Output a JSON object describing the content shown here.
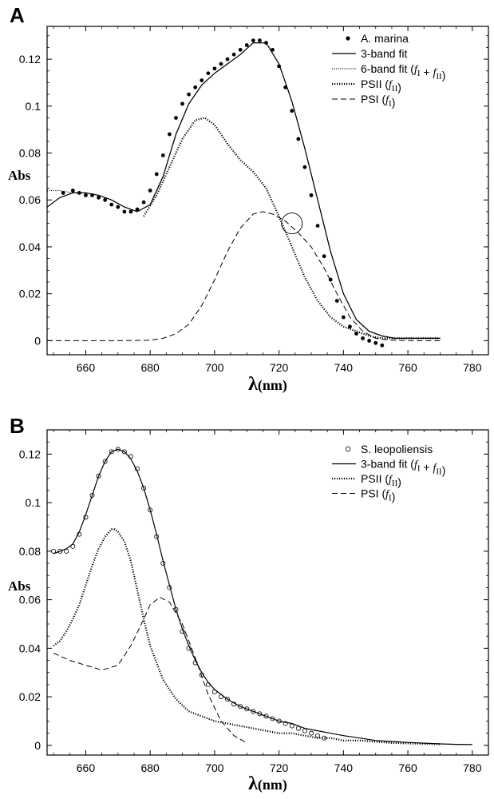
{
  "chart_data": [
    {
      "panel": "A",
      "type": "line",
      "xlabel": "λ(nm)",
      "ylabel": "Abs",
      "xlim": [
        648,
        785
      ],
      "ylim": [
        -0.006,
        0.134
      ],
      "xticks": [
        660,
        680,
        700,
        720,
        740,
        760,
        780
      ],
      "yticks": [
        0,
        0.02,
        0.04,
        0.06,
        0.08,
        0.1,
        0.12
      ],
      "ytick_labels": [
        "0",
        "0.02",
        "0.04",
        "0.06",
        "0.08",
        "0.1",
        "0.12"
      ],
      "legend_position": "top-right",
      "annotation": "open circle marking PSI curve crossing near 724 nm, 0.05",
      "annotation_point": [
        724,
        0.05
      ],
      "series": [
        {
          "name": "A. marina",
          "style": "points",
          "x": [
            653,
            656,
            658,
            660,
            662,
            664,
            666,
            668,
            670,
            672,
            674,
            676,
            678,
            680,
            682,
            684,
            686,
            688,
            690,
            692,
            694,
            696,
            698,
            700,
            702,
            704,
            706,
            708,
            710,
            712,
            714,
            716,
            718,
            720,
            722,
            724,
            726,
            728,
            730,
            732,
            734,
            736,
            738,
            740,
            742,
            744,
            746,
            748,
            750,
            752
          ],
          "y": [
            0.063,
            0.064,
            0.063,
            0.062,
            0.062,
            0.061,
            0.06,
            0.058,
            0.057,
            0.055,
            0.055,
            0.056,
            0.059,
            0.064,
            0.071,
            0.079,
            0.088,
            0.095,
            0.101,
            0.105,
            0.108,
            0.111,
            0.114,
            0.116,
            0.118,
            0.12,
            0.122,
            0.124,
            0.126,
            0.128,
            0.128,
            0.127,
            0.124,
            0.117,
            0.108,
            0.098,
            0.086,
            0.074,
            0.062,
            0.049,
            0.036,
            0.026,
            0.017,
            0.01,
            0.006,
            0.003,
            0.001,
            0.0,
            -0.001,
            -0.002
          ]
        },
        {
          "name": "3-band fit",
          "style": "solid",
          "x": [
            648,
            652,
            656,
            660,
            664,
            668,
            672,
            676,
            680,
            684,
            688,
            692,
            696,
            700,
            704,
            708,
            712,
            716,
            720,
            724,
            728,
            732,
            736,
            740,
            744,
            748,
            752,
            756,
            760,
            764,
            770
          ],
          "y": [
            0.057,
            0.061,
            0.063,
            0.063,
            0.062,
            0.06,
            0.057,
            0.055,
            0.058,
            0.07,
            0.088,
            0.101,
            0.109,
            0.114,
            0.118,
            0.122,
            0.127,
            0.127,
            0.118,
            0.102,
            0.082,
            0.06,
            0.038,
            0.02,
            0.009,
            0.004,
            0.002,
            0.001,
            0.001,
            0.001,
            0.001
          ]
        },
        {
          "name": "6-band fit (f_I + f_II)",
          "style": "finedot",
          "x": [
            648,
            652,
            656,
            660,
            664,
            668,
            672,
            676,
            680,
            684,
            688,
            692,
            696,
            700,
            704,
            708,
            712,
            716,
            720,
            724,
            728,
            732,
            736,
            740,
            744,
            748,
            752,
            756,
            760,
            764,
            770
          ],
          "y": [
            0.064,
            0.064,
            0.063,
            0.063,
            0.062,
            0.06,
            0.057,
            0.055,
            0.058,
            0.07,
            0.088,
            0.101,
            0.109,
            0.114,
            0.118,
            0.122,
            0.127,
            0.127,
            0.118,
            0.102,
            0.082,
            0.06,
            0.038,
            0.02,
            0.009,
            0.004,
            0.002,
            0.001,
            0.001,
            0.001,
            0.001
          ]
        },
        {
          "name": "PSII (f_II)",
          "style": "thickdot",
          "x": [
            678,
            682,
            686,
            690,
            694,
            697,
            700,
            704,
            708,
            712,
            716,
            720,
            724,
            728,
            732,
            736,
            740,
            744,
            748,
            752,
            756,
            760,
            764,
            770
          ],
          "y": [
            0.053,
            0.062,
            0.074,
            0.086,
            0.094,
            0.095,
            0.092,
            0.084,
            0.077,
            0.072,
            0.065,
            0.053,
            0.04,
            0.027,
            0.017,
            0.01,
            0.006,
            0.004,
            0.002,
            0.001,
            0.001,
            0.001,
            0.001,
            0.001
          ]
        },
        {
          "name": "PSI (f_I)",
          "style": "dashed",
          "x": [
            648,
            660,
            670,
            680,
            684,
            688,
            692,
            696,
            700,
            704,
            708,
            712,
            715,
            718,
            722,
            726,
            730,
            734,
            738,
            742,
            746,
            750,
            754,
            758,
            762,
            766,
            770
          ],
          "y": [
            0,
            0,
            0,
            0.0002,
            0.001,
            0.003,
            0.007,
            0.015,
            0.026,
            0.038,
            0.048,
            0.054,
            0.055,
            0.054,
            0.051,
            0.046,
            0.04,
            0.031,
            0.02,
            0.01,
            0.004,
            0.001,
            0.0003,
            0.0001,
            0,
            0,
            0
          ]
        }
      ]
    },
    {
      "panel": "B",
      "type": "line",
      "xlabel": "λ(nm)",
      "ylabel": "Abs",
      "xlim": [
        648,
        785
      ],
      "ylim": [
        -0.004,
        0.13
      ],
      "xticks": [
        660,
        680,
        700,
        720,
        740,
        760,
        780
      ],
      "yticks": [
        0,
        0.02,
        0.04,
        0.06,
        0.08,
        0.1,
        0.12
      ],
      "ytick_labels": [
        "0",
        "0.02",
        "0.04",
        "0.06",
        "0.08",
        "0.1",
        "0.12"
      ],
      "legend_position": "top-right",
      "series": [
        {
          "name": "S. leopoliensis",
          "style": "circles",
          "x": [
            650,
            652,
            654,
            656,
            658,
            660,
            662,
            664,
            666,
            668,
            670,
            672,
            674,
            676,
            678,
            680,
            682,
            684,
            686,
            688,
            690,
            692,
            694,
            696,
            698,
            700,
            702,
            704,
            706,
            708,
            710,
            712,
            714,
            716,
            718,
            720,
            722,
            724,
            726,
            728,
            730,
            732,
            734
          ],
          "y": [
            0.08,
            0.08,
            0.08,
            0.082,
            0.087,
            0.094,
            0.103,
            0.111,
            0.117,
            0.121,
            0.122,
            0.121,
            0.119,
            0.114,
            0.106,
            0.097,
            0.086,
            0.075,
            0.065,
            0.056,
            0.047,
            0.04,
            0.034,
            0.029,
            0.025,
            0.022,
            0.02,
            0.019,
            0.017,
            0.016,
            0.015,
            0.014,
            0.013,
            0.012,
            0.011,
            0.01,
            0.009,
            0.008,
            0.007,
            0.006,
            0.005,
            0.004,
            0.003
          ]
        },
        {
          "name": "3-band fit (f_I + f_II)",
          "style": "solid",
          "x": [
            650,
            652,
            654,
            656,
            658,
            660,
            662,
            664,
            666,
            668,
            670,
            672,
            674,
            676,
            678,
            680,
            682,
            684,
            686,
            688,
            690,
            692,
            694,
            696,
            698,
            700,
            704,
            708,
            712,
            716,
            720,
            724,
            728,
            732,
            736,
            740,
            745,
            750,
            755,
            760,
            765,
            770,
            775,
            780
          ],
          "y": [
            0.079,
            0.08,
            0.081,
            0.083,
            0.088,
            0.095,
            0.103,
            0.111,
            0.117,
            0.121,
            0.122,
            0.121,
            0.118,
            0.113,
            0.106,
            0.097,
            0.087,
            0.076,
            0.066,
            0.056,
            0.048,
            0.041,
            0.035,
            0.03,
            0.026,
            0.023,
            0.019,
            0.016,
            0.014,
            0.012,
            0.01,
            0.009,
            0.007,
            0.006,
            0.005,
            0.004,
            0.003,
            0.002,
            0.0016,
            0.0012,
            0.0009,
            0.0006,
            0.0004,
            0.0003
          ]
        },
        {
          "name": "PSII (f_II)",
          "style": "thickdot",
          "x": [
            650,
            652,
            654,
            656,
            658,
            660,
            662,
            664,
            666,
            668,
            669,
            670,
            672,
            674,
            676,
            678,
            680,
            684,
            688,
            692,
            696,
            700,
            704,
            708,
            712,
            716,
            720,
            724,
            728,
            732,
            736,
            740,
            745,
            750,
            755,
            760,
            765,
            770
          ],
          "y": [
            0.041,
            0.043,
            0.047,
            0.052,
            0.058,
            0.066,
            0.074,
            0.081,
            0.086,
            0.089,
            0.089,
            0.088,
            0.084,
            0.076,
            0.064,
            0.052,
            0.041,
            0.027,
            0.019,
            0.014,
            0.012,
            0.01,
            0.009,
            0.008,
            0.007,
            0.006,
            0.005,
            0.005,
            0.004,
            0.003,
            0.003,
            0.002,
            0.002,
            0.0015,
            0.001,
            0.0008,
            0.0006,
            0.0005
          ]
        },
        {
          "name": "PSI (f_I)",
          "style": "dashed",
          "x": [
            650,
            655,
            660,
            665,
            670,
            674,
            678,
            680,
            683,
            686,
            690,
            694,
            698,
            702,
            706,
            710
          ],
          "y": [
            0.038,
            0.035,
            0.033,
            0.031,
            0.033,
            0.041,
            0.052,
            0.058,
            0.061,
            0.059,
            0.05,
            0.036,
            0.021,
            0.01,
            0.004,
            0.001
          ]
        }
      ]
    }
  ]
}
